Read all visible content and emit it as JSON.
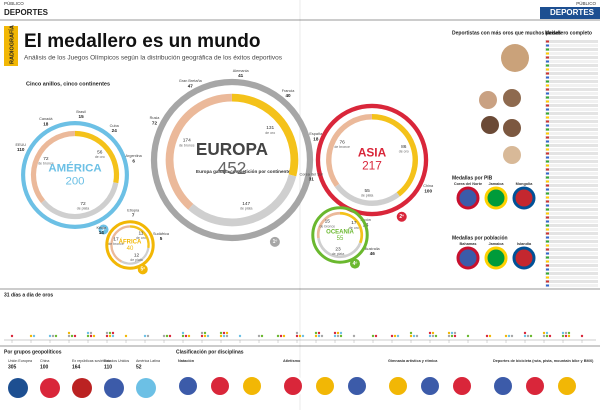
{
  "header": {
    "left_paper": "PÚBLICO",
    "left_section": "DEPORTES",
    "right_paper": "PÚBLICO",
    "right_section": "DEPORTES",
    "tab": "RADIOGRAFÍA"
  },
  "title": "El medallero es un mundo",
  "subtitle": "Análisis de los Juegos Olímpicos según la distribución geográfica de los éxitos deportivos",
  "rings_heading": "Cinco anillos, cinco continentes",
  "note": "Europa gana la competición por continentes",
  "medal_words": [
    "de oro",
    "de plata",
    "de bronce"
  ],
  "continents": [
    {
      "name": "EUROPA",
      "total": 452,
      "rank": "1º",
      "gold": 131,
      "silver": 147,
      "bronze": 174,
      "color": "#a6a6a6",
      "countries": [
        {
          "name": "Rusia",
          "medals": 72
        },
        {
          "name": "Gran Bretaña",
          "medals": 47
        },
        {
          "name": "Alemania",
          "medals": 41
        },
        {
          "name": "Francia",
          "medals": 40
        },
        {
          "name": "España",
          "medals": 18
        }
      ]
    },
    {
      "name": "ASIA",
      "total": 217,
      "rank": "2º",
      "gold": 86,
      "silver": 55,
      "bronze": 76,
      "color": "#d9263a",
      "countries": [
        {
          "name": "China",
          "medals": 100
        },
        {
          "name": "Japón",
          "medals": 25
        },
        {
          "name": "Corea del Sur",
          "medals": 31
        }
      ]
    },
    {
      "name": "AMÉRICA",
      "total": 200,
      "rank": "3º",
      "gold": 56,
      "silver": 72,
      "bronze": 72,
      "color": "#6cc0e5",
      "countries": [
        {
          "name": "EEUU",
          "medals": 110
        },
        {
          "name": "Canadá",
          "medals": 18
        },
        {
          "name": "Brasil",
          "medals": 15
        },
        {
          "name": "Cuba",
          "medals": 24
        },
        {
          "name": "Argentina",
          "medals": 6
        }
      ]
    },
    {
      "name": "OCEANÍA",
      "total": 55,
      "rank": "4º",
      "gold": 17,
      "silver": 23,
      "bronze": 15,
      "color": "#6ab82e",
      "countries": [
        {
          "name": "Australia",
          "medals": 46
        }
      ]
    },
    {
      "name": "ÁFRICA",
      "total": 40,
      "rank": "5º",
      "gold": 11,
      "silver": 12,
      "bronze": 17,
      "color": "#f2b705",
      "countries": [
        {
          "name": "Kenia",
          "medals": 14
        },
        {
          "name": "Etiopía",
          "medals": 7
        },
        {
          "name": "Sudáfrica",
          "medals": 5
        }
      ]
    }
  ],
  "sidebar": {
    "athletes_heading": "Deportistas con más oros que muchos países",
    "table_heading": "Medallero completo",
    "gdp_heading": "Medallas por PIB",
    "gdp_countries": [
      "Corea del Norte",
      "Jamaica",
      "Mongolia"
    ],
    "pop_heading": "Medallas por población",
    "pop_countries": [
      "Bahamas",
      "Jamaica",
      "Islandia"
    ]
  },
  "timeline_heading": "31 días a día de oros",
  "groups": {
    "heading": "Por grupos geopolíticos",
    "items": [
      {
        "name": "Unión Europea",
        "medals": 305
      },
      {
        "name": "China",
        "medals": 100
      },
      {
        "name": "Ex repúblicas soviéticas",
        "medals": 164
      },
      {
        "name": "Estados Unidos",
        "medals": 110
      },
      {
        "name": "América Latina",
        "medals": 52
      }
    ]
  },
  "disciplines": {
    "heading": "Clasificación por disciplinas",
    "items": [
      "Natación",
      "Atletismo",
      "Gimnasia artística y rítmica",
      "Deportes de bicicleta (ruta, pista, mountain bike y BMX)"
    ]
  }
}
